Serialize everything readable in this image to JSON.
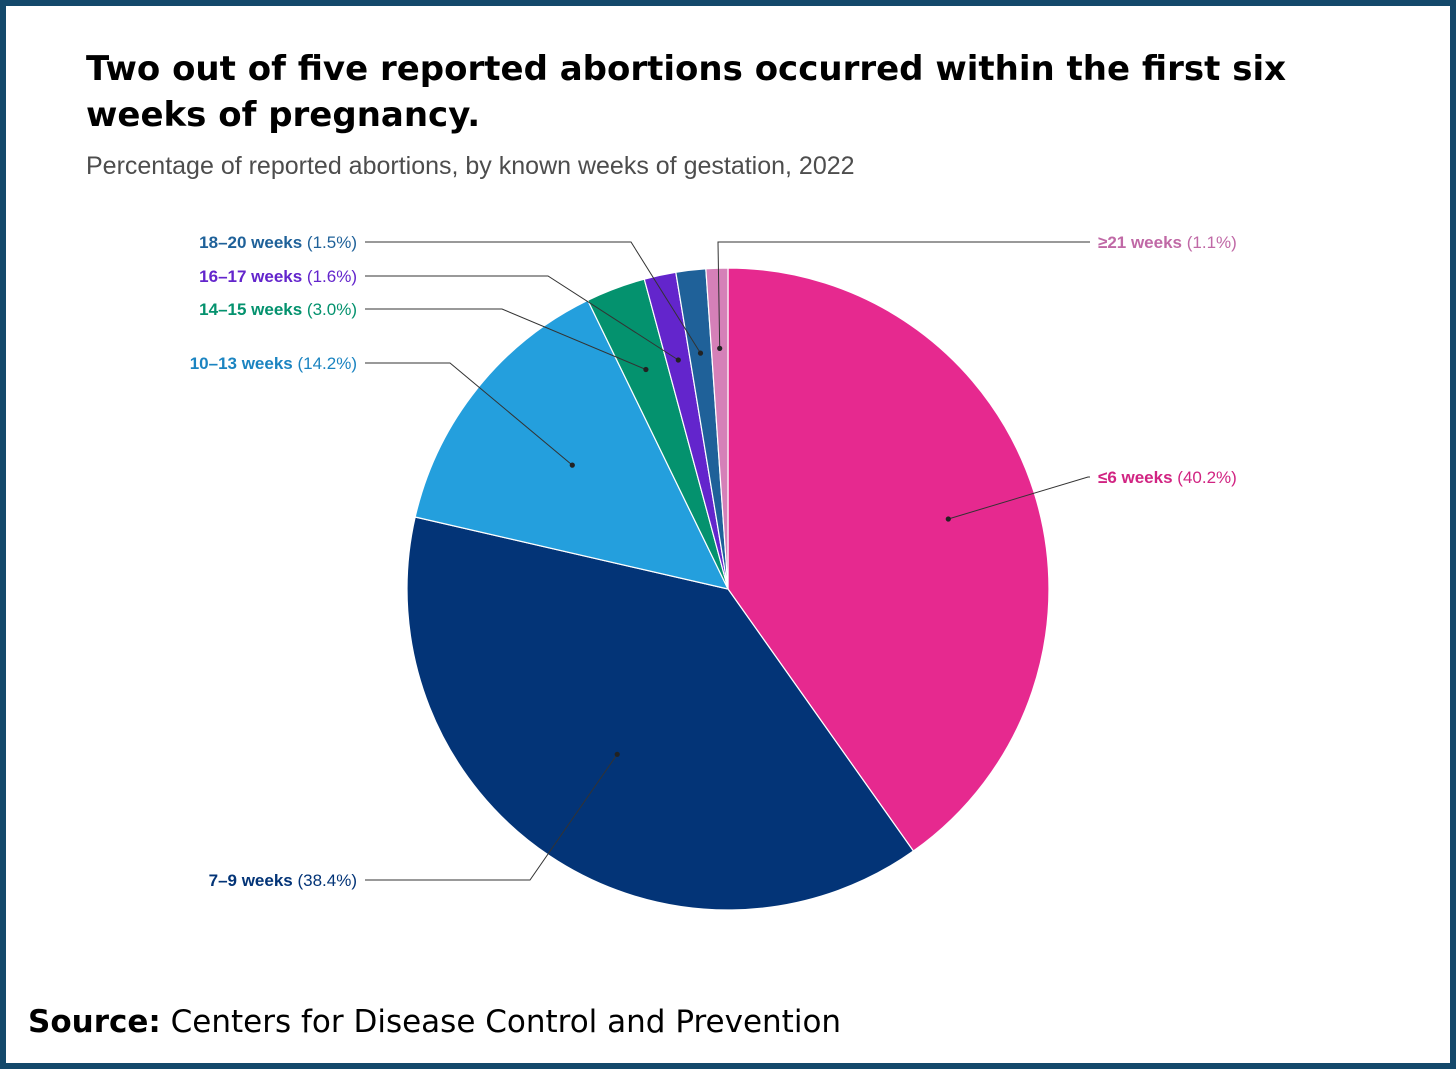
{
  "title": "Two out of five reported abortions occurred within the first six weeks of pregnancy.",
  "subtitle": "Percentage of reported abortions, by known weeks of gestation, 2022",
  "source": {
    "label": "Source:",
    "text": "Centers for Disease Control and Prevention"
  },
  "colors": {
    "frame": "#14496b"
  },
  "chart_data": {
    "type": "pie",
    "title": "Two out of five reported abortions occurred within the first six weeks of pregnancy.",
    "subtitle": "Percentage of reported abortions, by known weeks of gestation, 2022",
    "unit": "%",
    "slices": [
      {
        "name": "≤6 weeks",
        "value": 40.2,
        "display": "(40.2%)",
        "color": "#e6298f",
        "label_color": "#d12482"
      },
      {
        "name": "7–9 weeks",
        "value": 38.4,
        "display": "(38.4%)",
        "color": "#033477",
        "label_color": "#033477"
      },
      {
        "name": "10–13 weeks",
        "value": 14.2,
        "display": "(14.2%)",
        "color": "#249fdd",
        "label_color": "#1b84c1"
      },
      {
        "name": "14–15 weeks",
        "value": 3.0,
        "display": "(3.0%)",
        "color": "#04926e",
        "label_color": "#04926e"
      },
      {
        "name": "16–17 weeks",
        "value": 1.6,
        "display": "(1.6%)",
        "color": "#6325cc",
        "label_color": "#6325cc"
      },
      {
        "name": "18–20 weeks",
        "value": 1.5,
        "display": "(1.5%)",
        "color": "#1f6199",
        "label_color": "#1f6199"
      },
      {
        "name": "≥21 weeks",
        "value": 1.1,
        "display": "(1.1%)",
        "color": "#d580b8",
        "label_color": "#c069a6"
      }
    ]
  }
}
